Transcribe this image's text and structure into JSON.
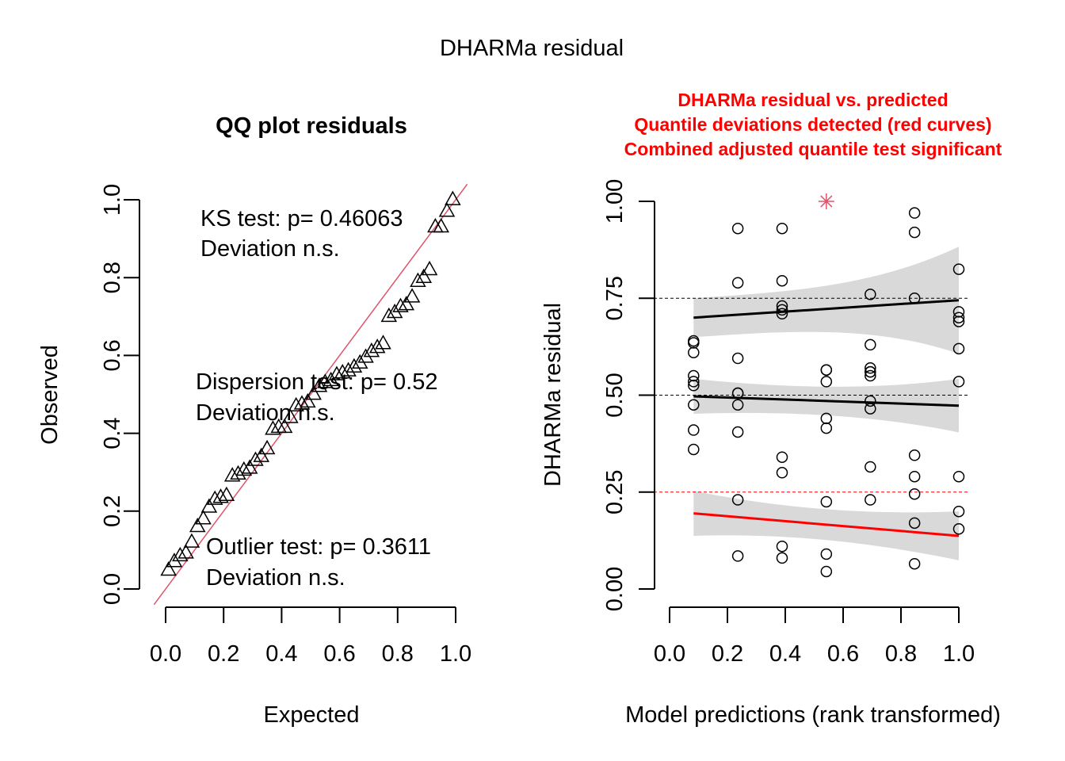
{
  "figure_title": "DHARMa residual",
  "chart_data": [
    {
      "type": "scatter",
      "title": "QQ plot residuals",
      "xlabel": "Expected",
      "ylabel": "Observed",
      "xlim": [
        0,
        1
      ],
      "ylim": [
        0,
        1
      ],
      "xticks": [
        "0.0",
        "0.2",
        "0.4",
        "0.6",
        "0.8",
        "1.0"
      ],
      "yticks": [
        "0.0",
        "0.2",
        "0.4",
        "0.6",
        "0.8",
        "1.0"
      ],
      "marker": "triangle",
      "reference_line": {
        "from": [
          0,
          0
        ],
        "to": [
          1,
          1
        ],
        "color": "#DF536B"
      },
      "annotations": {
        "ks_line1": "KS test: p= 0.46063",
        "ks_line2": "Deviation  n.s.",
        "dispersion_line1": "Dispersion test: p= 0.52",
        "dispersion_line2": "Deviation  n.s.",
        "outlier_line1": "Outlier test: p= 0.3611",
        "outlier_line2": "Deviation  n.s."
      },
      "x": [
        0.01,
        0.03,
        0.05,
        0.07,
        0.09,
        0.11,
        0.13,
        0.15,
        0.17,
        0.19,
        0.21,
        0.23,
        0.25,
        0.27,
        0.29,
        0.31,
        0.33,
        0.35,
        0.37,
        0.39,
        0.41,
        0.43,
        0.45,
        0.47,
        0.49,
        0.51,
        0.53,
        0.55,
        0.57,
        0.59,
        0.61,
        0.63,
        0.65,
        0.67,
        0.69,
        0.71,
        0.73,
        0.75,
        0.77,
        0.79,
        0.81,
        0.83,
        0.85,
        0.87,
        0.89,
        0.91,
        0.93,
        0.95,
        0.97,
        0.99
      ],
      "y": [
        0.048,
        0.07,
        0.085,
        0.092,
        0.12,
        0.16,
        0.18,
        0.21,
        0.23,
        0.235,
        0.24,
        0.29,
        0.295,
        0.305,
        0.31,
        0.33,
        0.34,
        0.36,
        0.41,
        0.415,
        0.415,
        0.44,
        0.47,
        0.475,
        0.48,
        0.5,
        0.52,
        0.53,
        0.535,
        0.55,
        0.555,
        0.56,
        0.57,
        0.58,
        0.595,
        0.61,
        0.62,
        0.63,
        0.7,
        0.71,
        0.725,
        0.73,
        0.75,
        0.79,
        0.8,
        0.82,
        0.93,
        0.93,
        0.97,
        1.0
      ]
    },
    {
      "type": "scatter",
      "title": "DHARMa residual vs. predicted",
      "subtitle_lines": [
        "Quantile deviations detected (red curves)",
        "Combined adjusted quantile test significant"
      ],
      "xlabel": "Model predictions (rank transformed)",
      "ylabel": "DHARMa residual",
      "xlim": [
        0,
        1
      ],
      "ylim": [
        0,
        1
      ],
      "xticks": [
        "0.0",
        "0.2",
        "0.4",
        "0.6",
        "0.8",
        "1.0"
      ],
      "yticks": [
        "0.00",
        "0.25",
        "0.50",
        "0.75",
        "1.00"
      ],
      "reference_lines": [
        {
          "y": 0.25,
          "color": "#ff0000"
        },
        {
          "y": 0.5,
          "color": "#000000"
        },
        {
          "y": 0.75,
          "color": "#000000"
        }
      ],
      "points": {
        "x": [
          0.083,
          0.083,
          0.083,
          0.083,
          0.083,
          0.083,
          0.083,
          0.083,
          0.083,
          0.236,
          0.236,
          0.236,
          0.236,
          0.236,
          0.236,
          0.236,
          0.236,
          0.236,
          0.389,
          0.389,
          0.389,
          0.389,
          0.389,
          0.389,
          0.389,
          0.389,
          0.389,
          0.542,
          0.542,
          0.542,
          0.542,
          0.542,
          0.542,
          0.542,
          0.542,
          0.694,
          0.694,
          0.694,
          0.694,
          0.694,
          0.694,
          0.694,
          0.694,
          0.694,
          0.694,
          0.847,
          0.847,
          0.847,
          0.847,
          0.847,
          0.847,
          0.847,
          0.847,
          1.0,
          1.0,
          1.0,
          1.0,
          1.0,
          1.0,
          1.0,
          1.0,
          1.0
        ],
        "y": [
          0.635,
          0.61,
          0.55,
          0.535,
          0.525,
          0.475,
          0.41,
          0.36,
          0.64,
          0.93,
          0.79,
          0.595,
          0.505,
          0.475,
          0.405,
          0.23,
          0.085,
          0.505,
          0.93,
          0.795,
          0.73,
          0.72,
          0.71,
          0.34,
          0.3,
          0.11,
          0.08,
          0.565,
          0.535,
          0.44,
          0.415,
          0.225,
          0.09,
          0.045,
          0.565,
          0.76,
          0.63,
          0.57,
          0.56,
          0.55,
          0.485,
          0.465,
          0.315,
          0.23,
          0.56,
          0.97,
          0.92,
          0.75,
          0.345,
          0.29,
          0.245,
          0.17,
          0.065,
          0.825,
          0.715,
          0.7,
          0.69,
          0.62,
          0.535,
          0.29,
          0.2,
          0.155
        ]
      },
      "outlier": {
        "x": 0.542,
        "y": 1.0,
        "marker": "asterisk",
        "color": "#DF536B"
      },
      "quantile_fits": [
        {
          "name": "0.75",
          "x0": 0.083,
          "y0": 0.7,
          "x1": 1.0,
          "y1": 0.745,
          "color": "#000000"
        },
        {
          "name": "0.5",
          "x0": 0.083,
          "y0": 0.497,
          "x1": 1.0,
          "y1": 0.473,
          "color": "#000000"
        },
        {
          "name": "0.25",
          "x0": 0.083,
          "y0": 0.195,
          "x1": 1.0,
          "y1": 0.137,
          "color": "#ff0000"
        }
      ],
      "ci_half_width": {
        "0.75": [
          0.05,
          0.12
        ],
        "0.5": [
          0.045,
          0.06
        ],
        "0.25": [
          0.058,
          0.055
        ]
      },
      "ci_color": "#d9d9d9"
    }
  ]
}
